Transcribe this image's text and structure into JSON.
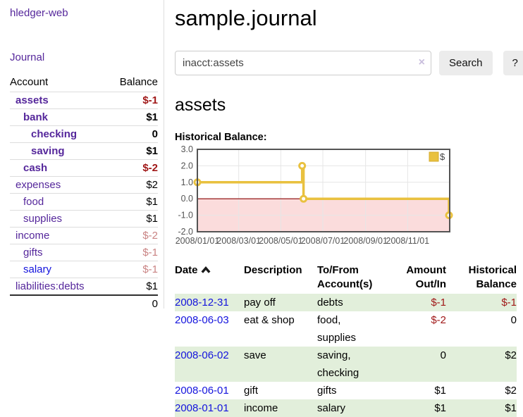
{
  "colors": {
    "link_purple": "#55279b",
    "link_blue": "#1414dd",
    "negative_strong": "#a01818",
    "negative_muted": "#c98383",
    "row_stripe_green": "#e2efdb",
    "chart_line_gold": "#e9c13f",
    "chart_negative_fill": "#fbdcdc",
    "chart_zero_line": "#8b0000",
    "chart_grid": "#e6e6e6",
    "chart_border": "#545454",
    "chart_axis_text": "#545454"
  },
  "sidebar": {
    "brand": "hledger-web",
    "nav": {
      "journal": "Journal"
    },
    "accounts_header": {
      "account": "Account",
      "balance": "Balance"
    },
    "accounts": [
      {
        "name": "assets",
        "indent": 0,
        "bold": true,
        "balance": "$-1",
        "balance_style": "neg-strong",
        "blue": false
      },
      {
        "name": "bank",
        "indent": 1,
        "bold": true,
        "balance": "$1",
        "balance_style": "",
        "blue": false
      },
      {
        "name": "checking",
        "indent": 2,
        "bold": true,
        "balance": "0",
        "balance_style": "",
        "blue": false
      },
      {
        "name": "saving",
        "indent": 2,
        "bold": true,
        "balance": "$1",
        "balance_style": "",
        "blue": false
      },
      {
        "name": "cash",
        "indent": 1,
        "bold": true,
        "balance": "$-2",
        "balance_style": "neg-strong",
        "blue": false
      },
      {
        "name": "expenses",
        "indent": 0,
        "bold": false,
        "balance": "$2",
        "balance_style": "",
        "blue": false
      },
      {
        "name": "food",
        "indent": 1,
        "bold": false,
        "balance": "$1",
        "balance_style": "",
        "blue": false
      },
      {
        "name": "supplies",
        "indent": 1,
        "bold": false,
        "balance": "$1",
        "balance_style": "",
        "blue": false
      },
      {
        "name": "income",
        "indent": 0,
        "bold": false,
        "balance": "$-2",
        "balance_style": "neg-muted",
        "blue": false
      },
      {
        "name": "gifts",
        "indent": 1,
        "bold": false,
        "balance": "$-1",
        "balance_style": "neg-muted",
        "blue": false
      },
      {
        "name": "salary",
        "indent": 1,
        "bold": false,
        "balance": "$-1",
        "balance_style": "neg-muted",
        "blue": true
      },
      {
        "name": "liabilities:debts",
        "indent": 0,
        "bold": false,
        "balance": "$1",
        "balance_style": "",
        "blue": false
      }
    ],
    "total": "0"
  },
  "header": {
    "title": "sample.journal"
  },
  "search": {
    "value": "inacct:assets",
    "clear_glyph": "×",
    "button_label": "Search",
    "help_label": "?"
  },
  "account_page": {
    "heading": "assets",
    "section_label": "Historical Balance:"
  },
  "chart_data": {
    "type": "line",
    "title": "Historical Balance:",
    "step": true,
    "series": [
      {
        "name": "$",
        "color": "#e9c13f",
        "points": [
          {
            "x": "2008-01-01",
            "y": 1
          },
          {
            "x": "2008-06-01",
            "y": 2
          },
          {
            "x": "2008-06-03",
            "y": 0
          },
          {
            "x": "2008-12-31",
            "y": -1
          }
        ]
      }
    ],
    "ylim": [
      -2,
      3
    ],
    "y_ticks": [
      3,
      2,
      1,
      0,
      -1,
      -2
    ],
    "y_tick_labels": [
      "3.0",
      "2.0",
      "1.0",
      "0.0",
      "-1.0",
      "-2.0"
    ],
    "x_range": [
      "2008-01-01",
      "2009-01-01"
    ],
    "x_ticks": [
      {
        "date": "2008-01-01",
        "label": "2008/01/01"
      },
      {
        "date": "2008-03-01",
        "label": "2008/03/01"
      },
      {
        "date": "2008-05-01",
        "label": "2008/05/01"
      },
      {
        "date": "2008-07-01",
        "label": "2008/07/01"
      },
      {
        "date": "2008-09-01",
        "label": "2008/09/01"
      },
      {
        "date": "2008-11-01",
        "label": "2008/11/01"
      }
    ],
    "legend": {
      "label": "$",
      "position": "top-right"
    },
    "grid": true,
    "negative_region_shaded": true,
    "zero_line": true
  },
  "register": {
    "columns": [
      {
        "label": "Date",
        "align": "left",
        "sorted": "asc"
      },
      {
        "label": "Description",
        "align": "left"
      },
      {
        "label": "To/From\nAccount(s)",
        "align": "left"
      },
      {
        "label": "Amount\nOut/In",
        "align": "right"
      },
      {
        "label": "Historical\nBalance",
        "align": "right"
      }
    ],
    "rows": [
      {
        "date": "2008-12-31",
        "description": "pay off",
        "accounts": "debts",
        "amount": "$-1",
        "amount_negative": true,
        "balance": "$-1",
        "balance_negative": true
      },
      {
        "date": "2008-06-03",
        "description": "eat & shop",
        "accounts": "food, supplies",
        "amount": "$-2",
        "amount_negative": true,
        "balance": "0",
        "balance_negative": false
      },
      {
        "date": "2008-06-02",
        "description": "save",
        "accounts": "saving, checking",
        "amount": "0",
        "amount_negative": false,
        "balance": "$2",
        "balance_negative": false
      },
      {
        "date": "2008-06-01",
        "description": "gift",
        "accounts": "gifts",
        "amount": "$1",
        "amount_negative": false,
        "balance": "$2",
        "balance_negative": false
      },
      {
        "date": "2008-01-01",
        "description": "income",
        "accounts": "salary",
        "amount": "$1",
        "amount_negative": false,
        "balance": "$1",
        "balance_negative": false
      }
    ]
  }
}
